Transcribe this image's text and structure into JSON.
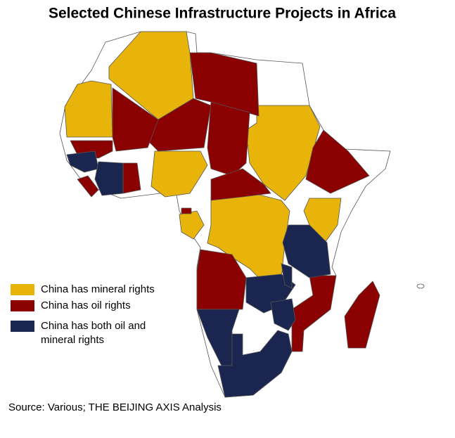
{
  "header": {
    "title": "Selected Chinese Infrastructure Projects in Africa"
  },
  "legend": {
    "items": [
      {
        "label": "China has mineral rights",
        "color": "#e8b40a"
      },
      {
        "label": "China has oil rights",
        "color": "#8b0000"
      },
      {
        "label": "China has both oil and mineral rights",
        "color": "#1a2550"
      }
    ]
  },
  "footer": {
    "source": "Source: Various; THE BEIJING AXIS Analysis"
  }
}
